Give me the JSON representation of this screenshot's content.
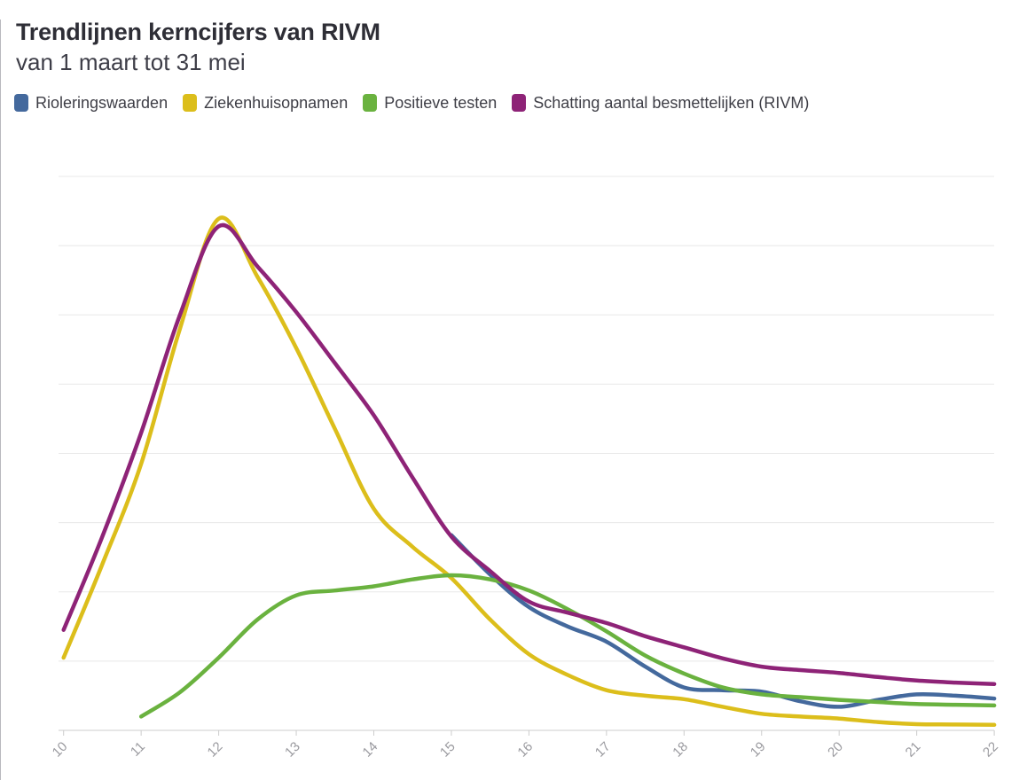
{
  "header": {
    "title": "Trendlijnen kerncijfers van RIVM",
    "subtitle": "van 1 maart tot 31 mei"
  },
  "legend": {
    "items": [
      {
        "id": "rioleringswaarden",
        "label": "Rioleringswaarden",
        "color": "#44699D"
      },
      {
        "id": "ziekenhuisopnamen",
        "label": "Ziekenhuisopnamen",
        "color": "#DCBE1B"
      },
      {
        "id": "positieve-testen",
        "label": "Positieve testen",
        "color": "#6AB23F"
      },
      {
        "id": "schatting-besmettelijken",
        "label": "Schatting aantal besmettelijken (RIVM)",
        "color": "#8E2377"
      }
    ]
  },
  "chart_data": {
    "type": "line",
    "title": "Trendlijnen kerncijfers van RIVM",
    "subtitle": "van 1 maart tot 31 mei",
    "xlabel": "",
    "ylabel": "",
    "x_ticks": [
      10,
      11,
      12,
      13,
      14,
      15,
      16,
      17,
      18,
      19,
      20,
      21,
      22
    ],
    "x_range": [
      10,
      22
    ],
    "y_axis": {
      "labels_visible": false,
      "min": 0,
      "max": 8,
      "gridline_count": 9,
      "units": "relative index (unlabeled axis)"
    },
    "x": [
      10,
      10.5,
      11,
      11.5,
      12,
      12.5,
      13,
      13.5,
      14,
      14.5,
      15,
      15.5,
      16,
      16.5,
      17,
      17.5,
      18,
      18.5,
      19,
      19.5,
      20,
      20.5,
      21,
      21.5,
      22
    ],
    "series": [
      {
        "id": "rioleringswaarden",
        "name": "Rioleringswaarden",
        "color": "#44699D",
        "values": [
          null,
          null,
          null,
          null,
          null,
          null,
          null,
          null,
          null,
          null,
          2.82,
          2.25,
          1.78,
          1.5,
          1.28,
          0.92,
          0.62,
          0.58,
          0.56,
          0.42,
          0.34,
          0.44,
          0.52,
          0.5,
          0.46
        ]
      },
      {
        "id": "ziekenhuisopnamen",
        "name": "Ziekenhuisopnamen",
        "color": "#DCBE1B",
        "values": [
          1.05,
          2.4,
          3.85,
          5.8,
          7.39,
          6.55,
          5.52,
          4.35,
          3.2,
          2.65,
          2.2,
          1.6,
          1.1,
          0.8,
          0.58,
          0.5,
          0.45,
          0.34,
          0.24,
          0.2,
          0.17,
          0.12,
          0.09,
          0.085,
          0.08
        ]
      },
      {
        "id": "positieve-testen",
        "name": "Positieve testen",
        "color": "#6AB23F",
        "values": [
          null,
          null,
          0.2,
          0.55,
          1.05,
          1.6,
          1.95,
          2.02,
          2.08,
          2.18,
          2.24,
          2.18,
          2.02,
          1.75,
          1.43,
          1.08,
          0.82,
          0.62,
          0.52,
          0.48,
          0.44,
          0.41,
          0.38,
          0.37,
          0.36
        ]
      },
      {
        "id": "schatting-besmettelijken",
        "name": "Schatting aantal besmettelijken (RIVM)",
        "color": "#8E2377",
        "values": [
          1.45,
          2.8,
          4.3,
          6.0,
          7.28,
          6.7,
          6.04,
          5.3,
          4.55,
          3.65,
          2.8,
          2.3,
          1.86,
          1.7,
          1.55,
          1.36,
          1.2,
          1.04,
          0.92,
          0.87,
          0.83,
          0.77,
          0.72,
          0.69,
          0.67
        ]
      }
    ],
    "style": {
      "grid_color": "#e8e8e8",
      "axis_color": "#cccccc",
      "tick_label_color": "#9a9a9f",
      "line_width": 4.5
    },
    "legend_position": "top"
  }
}
